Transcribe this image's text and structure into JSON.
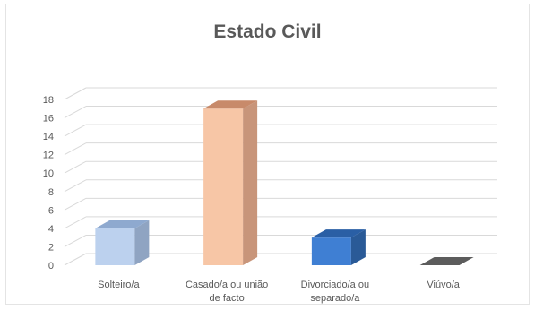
{
  "chart_data": {
    "type": "bar",
    "title": "Estado Civil",
    "xlabel": "",
    "ylabel": "",
    "categories": [
      [
        "Solteiro/a"
      ],
      [
        "Casado/a ou união",
        "de facto"
      ],
      [
        "Divorciado/a ou",
        "separado/a"
      ],
      [
        "Viúvo/a"
      ]
    ],
    "values": [
      4,
      17,
      3,
      0
    ],
    "ylim": [
      0,
      18
    ],
    "yticks": [
      0,
      2,
      4,
      6,
      8,
      10,
      12,
      14,
      16,
      18
    ],
    "grid": true,
    "legend": "none",
    "three_d": true,
    "colors": {
      "bars": [
        "#bcd1ee",
        "#f7c6a6",
        "#3f7fd3",
        "#7b7b7b"
      ],
      "tops": [
        "#8ea9cf",
        "#c88a6a",
        "#2a5fa5",
        "#5c5c5c"
      ],
      "sides": [
        "#8fa4c2",
        "#c8957a",
        "#2a5a97",
        "#5a5a5a"
      ],
      "grid": "#d9d9d9",
      "text": "#595959"
    }
  }
}
